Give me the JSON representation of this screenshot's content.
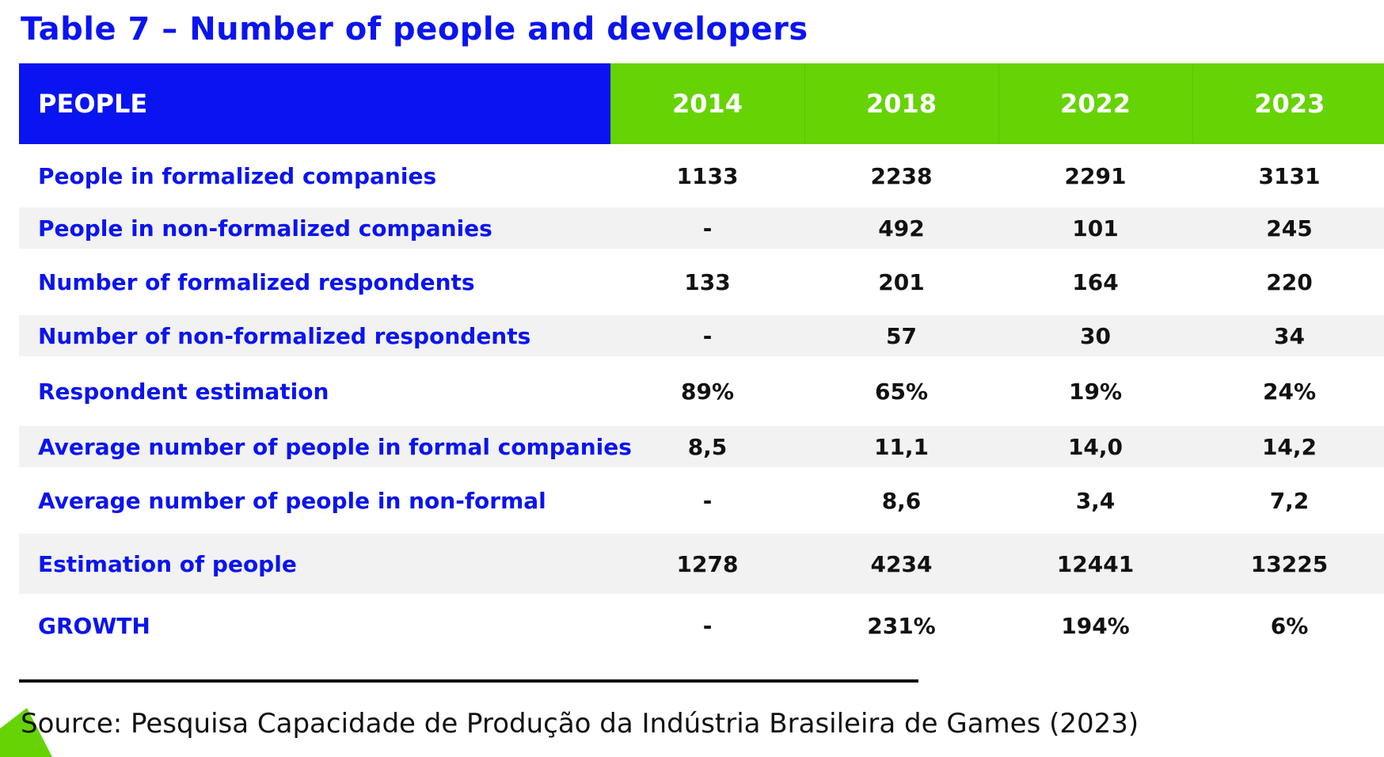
{
  "title": "Table 7 – Number of people and developers",
  "colors": {
    "accent_blue": "#0a14f0",
    "accent_green": "#66d305",
    "row_alt": "#f2f2f2"
  },
  "table": {
    "header": {
      "label": "PEOPLE",
      "years": [
        "2014",
        "2018",
        "2022",
        "2023"
      ]
    },
    "rows": [
      {
        "label": "People in formalized companies",
        "values": [
          "1133",
          "2238",
          "2291",
          "3131"
        ]
      },
      {
        "label": "People in non-formalized companies",
        "values": [
          "-",
          "492",
          "101",
          "245"
        ]
      },
      {
        "label": "Number of formalized respondents",
        "values": [
          "133",
          "201",
          "164",
          "220"
        ]
      },
      {
        "label": "Number of non-formalized respondents",
        "values": [
          "-",
          "57",
          "30",
          "34"
        ]
      },
      {
        "label": "Respondent estimation",
        "values": [
          "89%",
          "65%",
          "19%",
          "24%"
        ]
      },
      {
        "label": "Average number of people in formal companies",
        "values": [
          "8,5",
          "11,1",
          "14,0",
          "14,2"
        ]
      },
      {
        "label": "Average number of people in non-formal",
        "values": [
          "-",
          "8,6",
          "3,4",
          "7,2"
        ]
      },
      {
        "label": "Estimation of people",
        "values": [
          "1278",
          "4234",
          "12441",
          "13225"
        ]
      },
      {
        "label": "GROWTH",
        "values": [
          "-",
          "231%",
          "194%",
          "6%"
        ]
      }
    ]
  },
  "source": "Source: Pesquisa Capacidade de Produção da Indústria Brasileira de Games (2023)",
  "decoration": {
    "corner_shape": "green-triangle-corner"
  }
}
